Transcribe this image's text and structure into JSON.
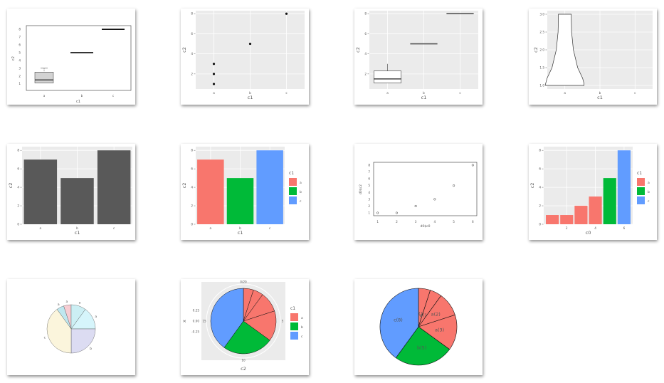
{
  "charts": [
    {
      "type": "boxplot",
      "style": "base",
      "xlabel": "c1",
      "ylabel": "c2",
      "categories": [
        "a",
        "b",
        "c"
      ],
      "yticks": [
        "1",
        "2",
        "3",
        "4",
        "5",
        "6",
        "7",
        "8"
      ],
      "ylim": [
        1,
        8
      ],
      "boxes": [
        {
          "min": 1,
          "q1": 1.1,
          "median": 1.5,
          "q3": 2.5,
          "max": 3
        },
        {
          "min": 5,
          "q1": 5,
          "median": 5,
          "q3": 5,
          "max": 5
        },
        {
          "min": 8,
          "q1": 8,
          "median": 8,
          "q3": 8,
          "max": 8
        }
      ]
    },
    {
      "type": "scatter",
      "style": "ggplot",
      "xlabel": "c1",
      "ylabel": "c2",
      "categories": [
        "a",
        "b",
        "c"
      ],
      "yticks": [
        "2",
        "4",
        "6",
        "8"
      ],
      "ylim": [
        0.5,
        8.3
      ],
      "points": [
        {
          "x": "a",
          "y": 1
        },
        {
          "x": "a",
          "y": 2
        },
        {
          "x": "a",
          "y": 3
        },
        {
          "x": "b",
          "y": 5
        },
        {
          "x": "c",
          "y": 8
        }
      ]
    },
    {
      "type": "boxplot",
      "style": "ggplot",
      "xlabel": "c1",
      "ylabel": "c2",
      "categories": [
        "a",
        "b",
        "c"
      ],
      "yticks": [
        "2",
        "4",
        "6",
        "8"
      ],
      "ylim": [
        0.5,
        8.3
      ],
      "boxes": [
        {
          "min": 1,
          "q1": 1.1,
          "median": 1.5,
          "q3": 2.3,
          "max": 3
        },
        {
          "min": 5,
          "q1": 5,
          "median": 5,
          "q3": 5,
          "max": 5
        },
        {
          "min": 8,
          "q1": 8,
          "median": 8,
          "q3": 8,
          "max": 8
        }
      ]
    },
    {
      "type": "violin",
      "style": "ggplot",
      "xlabel": "c1",
      "ylabel": "c2",
      "categories": [
        "a",
        "b",
        "c"
      ],
      "yticks": [
        "1.0",
        "1.5",
        "2.0",
        "2.5",
        "3.0"
      ],
      "ylim": [
        0.9,
        3.1
      ]
    },
    {
      "type": "bar",
      "style": "ggplot",
      "xlabel": "c1",
      "ylabel": "c2",
      "categories": [
        "a",
        "b",
        "c"
      ],
      "values": [
        7,
        5,
        8
      ],
      "yticks": [
        "0",
        "2",
        "4",
        "6",
        "8"
      ],
      "ylim": [
        0,
        8.4
      ]
    },
    {
      "type": "bar",
      "style": "ggplot",
      "xlabel": "c1",
      "ylabel": "c2",
      "categories": [
        "a",
        "b",
        "c"
      ],
      "values": [
        7,
        5,
        8
      ],
      "yticks": [
        "0",
        "2",
        "4",
        "6",
        "8"
      ],
      "ylim": [
        0,
        8.4
      ],
      "legend": {
        "title": "c1",
        "entries": [
          "a",
          "b",
          "c"
        ]
      }
    },
    {
      "type": "scatter",
      "style": "base",
      "xlabel": "d0$c0",
      "ylabel": "d0$c2",
      "xticks": [
        "1",
        "2",
        "3",
        "4",
        "5",
        "6"
      ],
      "yticks": [
        "1",
        "2",
        "3",
        "4",
        "5",
        "6",
        "7",
        "8"
      ],
      "xlim": [
        1,
        6
      ],
      "ylim": [
        1,
        8
      ],
      "points": [
        {
          "x": 1,
          "y": 1
        },
        {
          "x": 2,
          "y": 1
        },
        {
          "x": 3,
          "y": 2
        },
        {
          "x": 4,
          "y": 3
        },
        {
          "x": 5,
          "y": 5
        },
        {
          "x": 6,
          "y": 8
        }
      ]
    },
    {
      "type": "bar",
      "style": "ggplot",
      "xlabel": "c0",
      "ylabel": "c2",
      "x": [
        1,
        2,
        3,
        4,
        5,
        6
      ],
      "values": [
        1,
        1,
        2,
        3,
        5,
        8
      ],
      "groups": [
        "a",
        "a",
        "a",
        "a",
        "b",
        "c"
      ],
      "xticks": [
        "2",
        "4",
        "6"
      ],
      "yticks": [
        "0",
        "2",
        "4",
        "6",
        "8"
      ],
      "ylim": [
        0,
        8.4
      ],
      "legend": {
        "title": "c1",
        "entries": [
          "a",
          "b",
          "c"
        ]
      }
    },
    {
      "type": "pie",
      "style": "base",
      "values": [
        1,
        1,
        2,
        3,
        5,
        8
      ],
      "labels": [
        "a",
        "a",
        "a",
        "a",
        "b",
        "c"
      ]
    },
    {
      "type": "pie",
      "style": "ggplot",
      "xlabel": "c2",
      "ylabel": "x",
      "values": [
        1,
        1,
        2,
        3,
        5,
        8
      ],
      "groups": [
        "a",
        "a",
        "a",
        "a",
        "b",
        "c"
      ],
      "yticks": [
        "0.25",
        "0.00",
        "-0.25"
      ],
      "angle_ticks": [
        "0/20",
        "5",
        "10",
        "15"
      ],
      "legend": {
        "title": "c1",
        "entries": [
          "a",
          "b",
          "c"
        ]
      }
    },
    {
      "type": "pie",
      "style": "labeled",
      "values": [
        1,
        1,
        2,
        3,
        5,
        8
      ],
      "groups": [
        "a",
        "a",
        "a",
        "a",
        "b",
        "c"
      ],
      "labels": [
        "a(1)",
        "a(1)",
        "a(2)",
        "a(3)",
        "b(5)",
        "c(8)"
      ]
    }
  ],
  "colors": {
    "a": "#F8766D",
    "b": "#00BA38",
    "c": "#619CFF",
    "gray_bar": "#595959",
    "panel": "#EBEBEB"
  },
  "chart_data": [
    {
      "type": "bar",
      "categories": [
        "a",
        "b",
        "c"
      ],
      "values": [
        7,
        5,
        8
      ],
      "xlabel": "c1",
      "ylabel": "c2"
    },
    {
      "type": "scatter",
      "x": [
        1,
        2,
        3,
        4,
        5,
        6
      ],
      "values": [
        1,
        1,
        2,
        3,
        5,
        8
      ],
      "xlabel": "d0$c0",
      "ylabel": "d0$c2"
    },
    {
      "type": "pie",
      "labels": [
        "a",
        "a",
        "a",
        "a",
        "b",
        "c"
      ],
      "values": [
        1,
        1,
        2,
        3,
        5,
        8
      ]
    }
  ]
}
